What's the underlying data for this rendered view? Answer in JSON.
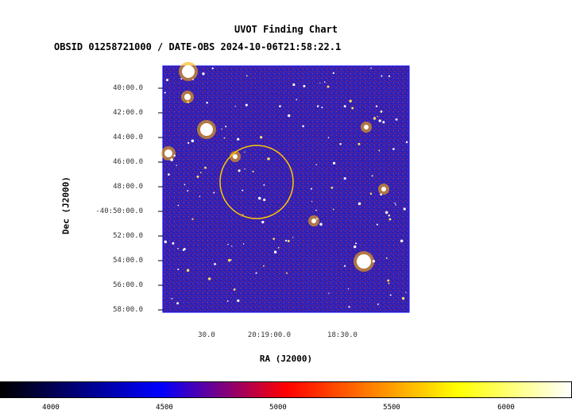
{
  "chart": {
    "title": "UVOT Finding Chart",
    "subtitle": "OBSID 01258721000 / DATE-OBS 2024-10-06T21:58:22.1",
    "ylabel": "Dec (J2000)",
    "xlabel": "RA (J2000)",
    "yticks": [
      "40:00.0",
      "42:00.0",
      "44:00.0",
      "46:00.0",
      "48:00.0",
      "-40:50:00.0",
      "52:00.0",
      "54:00.0",
      "56:00.0",
      "58:00.0"
    ],
    "xticks": [
      "30.0",
      "20:19:00.0",
      "18:30.0"
    ],
    "colorbar_ticks": [
      "4000",
      "4500",
      "5000",
      "5500",
      "6000"
    ],
    "colors": {
      "frame": "#0000ff",
      "circle": "#ffd000",
      "noise_blue": "#1020c0",
      "noise_red": "#d01020"
    }
  }
}
